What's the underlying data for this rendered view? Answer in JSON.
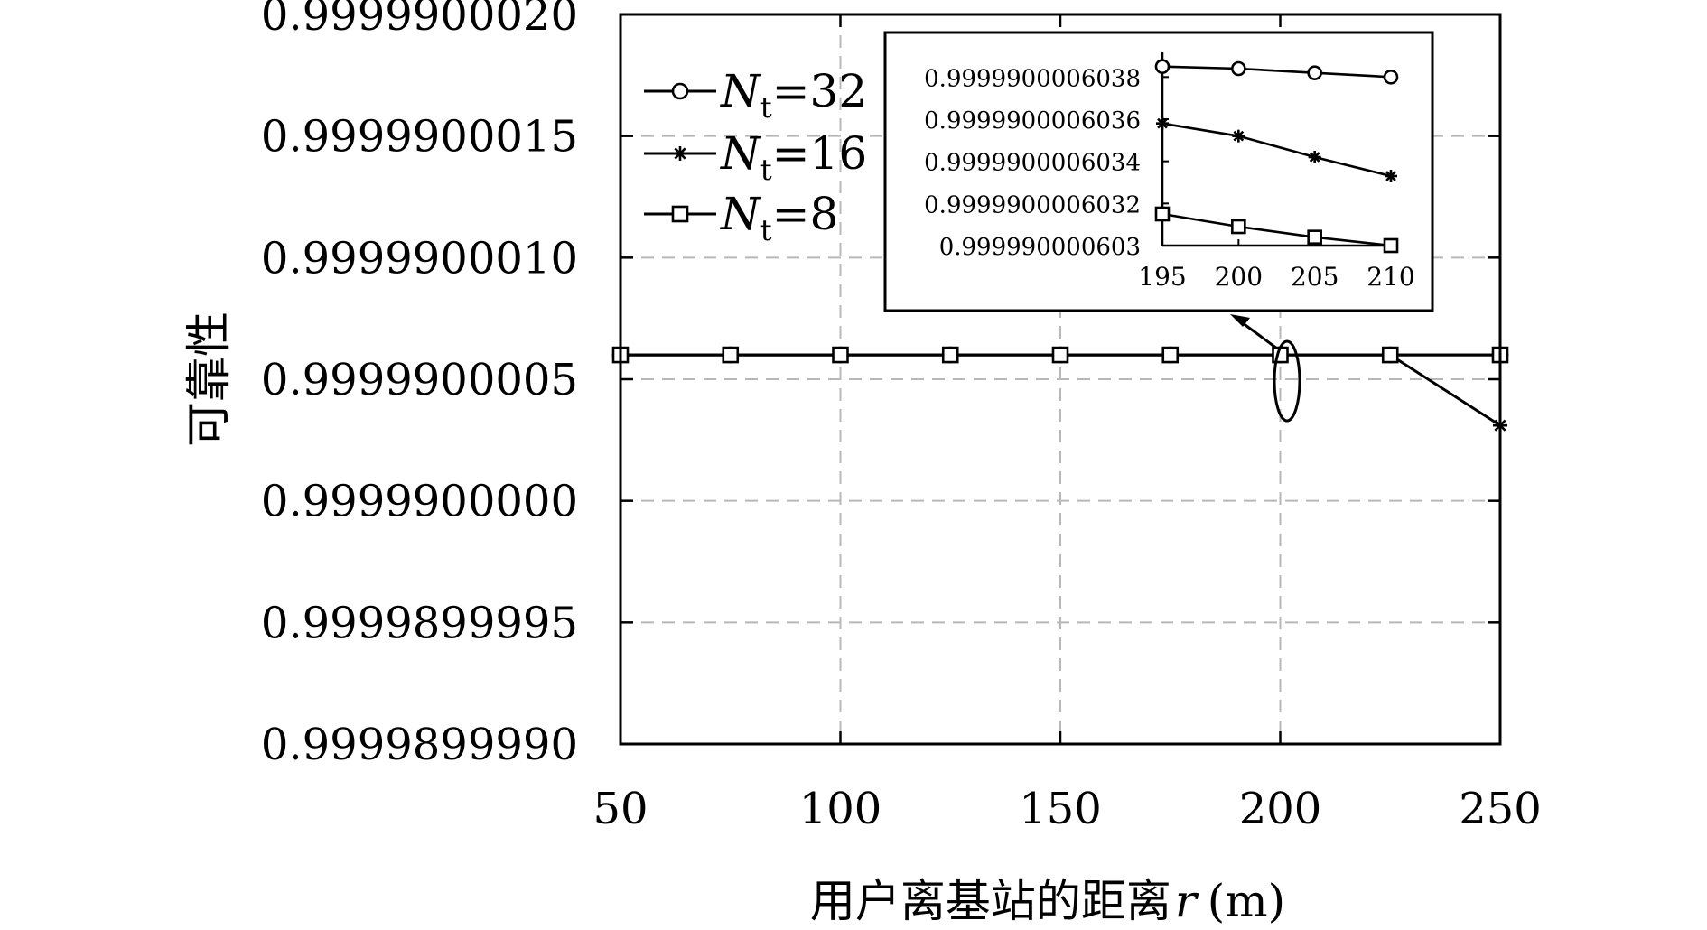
{
  "chart_data": [
    {
      "type": "line",
      "title": "",
      "xlabel": "用户离基站的距离",
      "xlabel_var": "r",
      "xlabel_unit": "(m)",
      "ylabel": "可靠性",
      "xlim": [
        50,
        250
      ],
      "ylim": [
        0.999989999,
        0.999990002
      ],
      "x_ticks": [
        50,
        100,
        150,
        200,
        250
      ],
      "x_tick_labels": [
        "50",
        "100",
        "150",
        "200",
        "250"
      ],
      "y_ticks": [
        0.999989999,
        0.9999899995,
        0.99999,
        0.9999900005,
        0.999990001,
        0.9999900015,
        0.999990002
      ],
      "y_tick_labels": [
        "0.9999899990",
        "0.9999899995",
        "0.9999900000",
        "0.9999900005",
        "0.9999900010",
        "0.9999900015",
        "0.9999900020"
      ],
      "grid": true,
      "legend_position": "top-left",
      "series": [
        {
          "name": "N_t=32",
          "legend_main": "N",
          "legend_sub": "t",
          "legend_tail": "=32",
          "marker": "circle",
          "x": [
            50,
            75,
            100,
            125,
            150,
            175,
            200,
            225,
            250
          ],
          "y": [
            0.9999900006,
            0.9999900006,
            0.9999900006,
            0.9999900006,
            0.9999900006,
            0.9999900006,
            0.9999900006,
            0.9999900006,
            0.9999900006
          ]
        },
        {
          "name": "N_t=16",
          "legend_main": "N",
          "legend_sub": "t",
          "legend_tail": "=16",
          "marker": "star",
          "x": [
            50,
            75,
            100,
            125,
            150,
            175,
            200,
            225,
            250
          ],
          "y": [
            0.9999900006,
            0.9999900006,
            0.9999900006,
            0.9999900006,
            0.9999900006,
            0.9999900006,
            0.9999900006,
            0.9999900006,
            0.99999000031
          ]
        },
        {
          "name": "N_t=8",
          "legend_main": "N",
          "legend_sub": "t",
          "legend_tail": "=8",
          "marker": "square",
          "x": [
            50,
            75,
            100,
            125,
            150,
            175,
            200,
            225,
            250
          ],
          "y": [
            0.9999900006,
            0.9999900006,
            0.9999900006,
            0.9999900006,
            0.9999900006,
            0.9999900006,
            0.9999900006,
            0.9999900006,
            0.9999900006
          ]
        }
      ]
    },
    {
      "type": "line",
      "role": "inset",
      "xlim": [
        195,
        210
      ],
      "ylim": [
        0.999990000603,
        0.9999900006039
      ],
      "x_ticks": [
        195,
        200,
        205,
        210
      ],
      "x_tick_labels": [
        "195",
        "200",
        "205",
        "210"
      ],
      "y_ticks": [
        0.999990000603,
        0.9999900006032,
        0.9999900006034,
        0.9999900006036,
        0.9999900006038
      ],
      "y_tick_labels": [
        "0.999990000603",
        "0.9999900006032",
        "0.9999900006034",
        "0.9999900006036",
        "0.9999900006038"
      ],
      "grid": false,
      "series": [
        {
          "name": "N_t=32",
          "marker": "circle",
          "x": [
            195,
            200,
            205,
            210
          ],
          "y": [
            0.99999000060385,
            0.99999000060384,
            0.99999000060382,
            0.9999900006038
          ]
        },
        {
          "name": "N_t=16",
          "marker": "star",
          "x": [
            195,
            200,
            205,
            210
          ],
          "y": [
            0.99999000060358,
            0.99999000060352,
            0.99999000060342,
            0.99999000060333
          ]
        },
        {
          "name": "N_t=8",
          "marker": "square",
          "x": [
            195,
            200,
            205,
            210
          ],
          "y": [
            0.99999000060315,
            0.99999000060309,
            0.99999000060304,
            0.999990000603
          ]
        }
      ]
    }
  ]
}
